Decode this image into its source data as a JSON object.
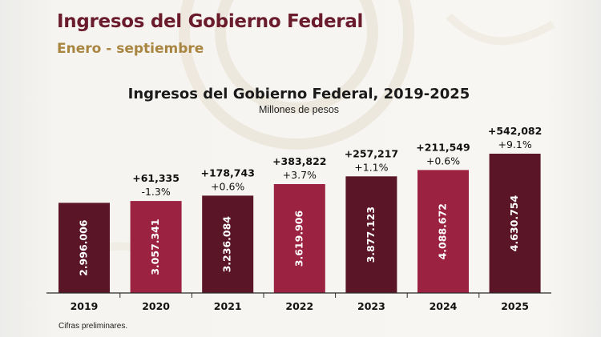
{
  "header": {
    "title": "Ingresos del Gobierno Federal",
    "subtitle": "Enero - septiembre"
  },
  "footnote": "Cifras preliminares.",
  "colors": {
    "title": "#6b1c2c",
    "subtitle": "#a88540",
    "bar_dark": "#5a1527",
    "bar_light": "#9b2240",
    "baseline": "#2b2b2b"
  },
  "chart_data": {
    "type": "bar",
    "title": "Ingresos del Gobierno Federal, 2019-2025",
    "unit": "Millones de pesos",
    "xlabel": "",
    "ylabel": "",
    "categories": [
      "2019",
      "2020",
      "2021",
      "2022",
      "2023",
      "2024",
      "2025"
    ],
    "values": [
      2996006,
      3057341,
      3236084,
      3619906,
      3877123,
      4088672,
      4630754
    ],
    "value_labels": [
      "2.996.006",
      "3.057.341",
      "3.236.084",
      "3.619.906",
      "3.877.123",
      "4.088.672",
      "4.630.754"
    ],
    "annotations": [
      null,
      {
        "abs_change": "+61,335",
        "pct_change": "-1.3%"
      },
      {
        "abs_change": "+178,743",
        "pct_change": "+0.6%"
      },
      {
        "abs_change": "+383,822",
        "pct_change": "+3.7%"
      },
      {
        "abs_change": "+257,217",
        "pct_change": "+1.1%"
      },
      {
        "abs_change": "+211,549",
        "pct_change": "+0.6%"
      },
      {
        "abs_change": "+542,082",
        "pct_change": "+9.1%"
      }
    ],
    "grid": false,
    "legend": "none"
  }
}
